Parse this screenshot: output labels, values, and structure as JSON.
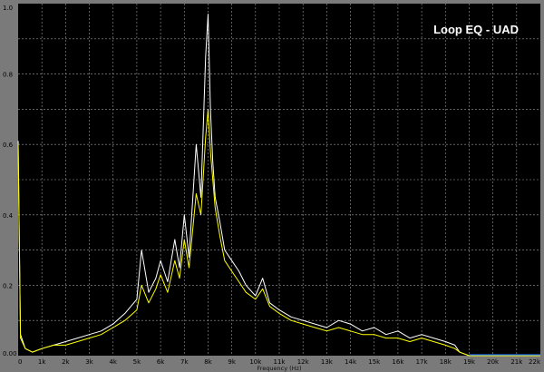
{
  "chart_data": {
    "type": "line",
    "title": "Loop EQ - UAD",
    "xlabel": "Frequency (Hz)",
    "ylabel": "",
    "xlim": [
      0,
      22000
    ],
    "ylim": [
      0,
      1.0
    ],
    "x_tick_labels": [
      "0",
      "1k",
      "2k",
      "3k",
      "4k",
      "5k",
      "6k",
      "7k",
      "8k",
      "9k",
      "10k",
      "11k",
      "12k",
      "13k",
      "14k",
      "15k",
      "16k",
      "17k",
      "18k",
      "19k",
      "20k",
      "21k",
      "22k"
    ],
    "y_tick_labels": [
      "0.00",
      "0.2",
      "0.4",
      "0.6",
      "0.8",
      "1.0"
    ],
    "grid": true,
    "colors": {
      "background": "#000000",
      "grid": "#9a9a9a",
      "series_white": "#ffffff",
      "series_yellow": "#ffff00",
      "baseline": "#1a6cff"
    },
    "series": [
      {
        "color": "#ffffff",
        "x": [
          0,
          100,
          300,
          600,
          1000,
          1500,
          2000,
          2500,
          3000,
          3500,
          4000,
          4500,
          5000,
          5200,
          5500,
          5800,
          6000,
          6300,
          6600,
          6800,
          7000,
          7200,
          7500,
          7700,
          7900,
          8000,
          8100,
          8200,
          8300,
          8500,
          8700,
          9000,
          9300,
          9600,
          10000,
          10300,
          10600,
          11000,
          11500,
          12000,
          12500,
          13000,
          13500,
          14000,
          14500,
          15000,
          15500,
          16000,
          16500,
          17000,
          17500,
          18000,
          18400,
          18600,
          19000,
          20000,
          21000,
          22000
        ],
        "values": [
          0.61,
          0.06,
          0.02,
          0.01,
          0.02,
          0.03,
          0.04,
          0.05,
          0.06,
          0.07,
          0.09,
          0.12,
          0.16,
          0.3,
          0.18,
          0.22,
          0.27,
          0.21,
          0.33,
          0.25,
          0.4,
          0.28,
          0.6,
          0.45,
          0.85,
          0.97,
          0.7,
          0.55,
          0.45,
          0.38,
          0.3,
          0.27,
          0.24,
          0.2,
          0.17,
          0.22,
          0.15,
          0.13,
          0.11,
          0.1,
          0.09,
          0.08,
          0.1,
          0.09,
          0.07,
          0.08,
          0.06,
          0.07,
          0.05,
          0.06,
          0.05,
          0.04,
          0.03,
          0.01,
          0.0,
          0.0,
          0.0,
          0.0
        ]
      },
      {
        "color": "#ffff00",
        "x": [
          0,
          100,
          300,
          600,
          1000,
          1500,
          2000,
          2500,
          3000,
          3500,
          4000,
          4500,
          5000,
          5200,
          5500,
          5800,
          6000,
          6300,
          6600,
          6800,
          7000,
          7200,
          7500,
          7700,
          7900,
          8000,
          8100,
          8200,
          8300,
          8500,
          8700,
          9000,
          9300,
          9600,
          10000,
          10300,
          10600,
          11000,
          11500,
          12000,
          12500,
          13000,
          13500,
          14000,
          14500,
          15000,
          15500,
          16000,
          16500,
          17000,
          17500,
          18000,
          18400,
          18600,
          19000,
          20000,
          21000,
          22000
        ],
        "values": [
          0.6,
          0.05,
          0.02,
          0.01,
          0.02,
          0.03,
          0.03,
          0.04,
          0.05,
          0.06,
          0.08,
          0.1,
          0.13,
          0.2,
          0.15,
          0.19,
          0.23,
          0.18,
          0.27,
          0.22,
          0.33,
          0.25,
          0.46,
          0.4,
          0.62,
          0.7,
          0.58,
          0.5,
          0.42,
          0.34,
          0.27,
          0.24,
          0.21,
          0.18,
          0.16,
          0.19,
          0.14,
          0.12,
          0.1,
          0.09,
          0.08,
          0.07,
          0.08,
          0.07,
          0.06,
          0.06,
          0.05,
          0.05,
          0.04,
          0.05,
          0.04,
          0.03,
          0.02,
          0.01,
          0.0,
          0.0,
          0.0,
          0.0
        ]
      }
    ]
  }
}
